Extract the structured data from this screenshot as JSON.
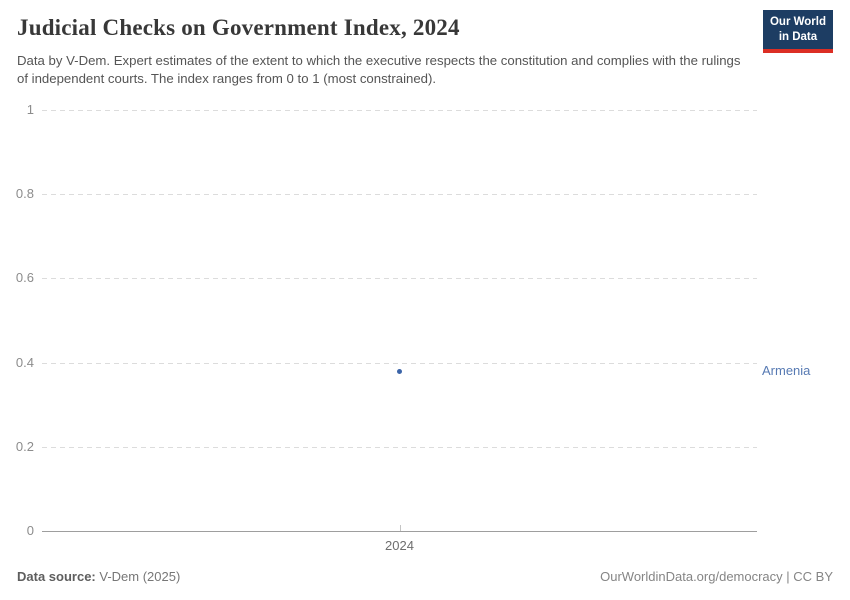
{
  "header": {
    "title": "Judicial Checks on Government Index, 2024",
    "subtitle": "Data by V-Dem. Expert estimates of the extent to which the executive respects the constitution and complies with the rulings of independent courts. The index ranges from 0 to 1 (most constrained).",
    "logo": {
      "line1": "Our World",
      "line2": "in Data",
      "bg_color": "#1d3d63",
      "stripe_color": "#dc2e24"
    }
  },
  "chart_data": {
    "type": "scatter",
    "title": "Judicial Checks on Government Index, 2024",
    "x": [
      2024
    ],
    "xticks": [
      "2024"
    ],
    "series": [
      {
        "name": "Armenia",
        "values": [
          0.38
        ],
        "point_color": "#3b64a8",
        "label_color": "#577ab3"
      }
    ],
    "ylim": [
      0,
      1
    ],
    "yticks": [
      0,
      0.2,
      0.4,
      0.6,
      0.8,
      1
    ],
    "xlabel": "",
    "ylabel": "",
    "grid": "horizontal-dashed",
    "legend": "entity-label-right"
  },
  "footer": {
    "source_label": "Data source:",
    "source_value": " V-Dem (2025)",
    "right_text": "OurWorldinData.org/democracy | CC BY"
  }
}
